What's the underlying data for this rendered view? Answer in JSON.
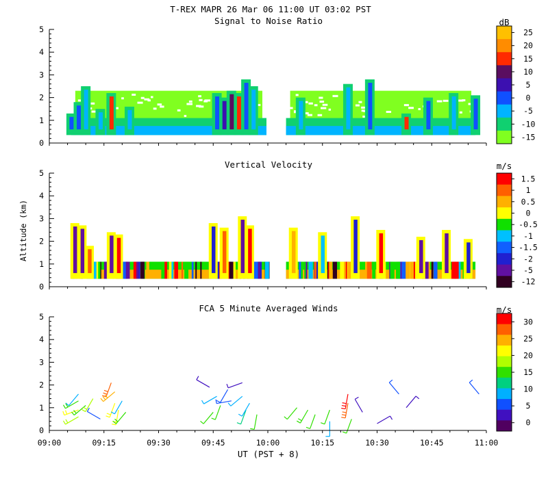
{
  "figure": {
    "title": "T-REX  MAPR 26 Mar 06  11:00 UT  03:02  PST",
    "xlabel": "UT  (PST + 8)",
    "x_ticks": [
      "09:00",
      "09:15",
      "09:30",
      "09:45",
      "10:00",
      "10:15",
      "10:30",
      "10:45",
      "11:00"
    ]
  },
  "chart_data": [
    {
      "type": "heatmap",
      "title": "Signal to Noise Ratio",
      "ylabel": "",
      "unit": "dB",
      "xlim": [
        "09:00",
        "11:00"
      ],
      "ylim": [
        0,
        5
      ],
      "y_ticks": [
        0,
        1,
        2,
        3,
        4,
        5
      ],
      "colorbar_labels": [
        "25",
        "20",
        "15",
        "10",
        "5",
        "0",
        "-5",
        "-10",
        "-15"
      ],
      "colorbar_colors": [
        "#ffc000",
        "#ff8c00",
        "#ff2a00",
        "#5a0e60",
        "#3c10b0",
        "#1050ff",
        "#00b4ff",
        "#10d070",
        "#80ff20"
      ],
      "data_gap": [
        "10:00",
        "10:05"
      ],
      "columns": [
        {
          "t": "09:06",
          "top": 1.3,
          "core": "#1050ff"
        },
        {
          "t": "09:08",
          "top": 1.8,
          "core": "#1050ff"
        },
        {
          "t": "09:10",
          "top": 2.5,
          "core": "#00b4ff"
        },
        {
          "t": "09:14",
          "top": 1.5,
          "core": "#00b4ff"
        },
        {
          "t": "09:17",
          "top": 2.2,
          "core": "#ff2a00"
        },
        {
          "t": "09:22",
          "top": 1.6,
          "core": "#00b4ff"
        },
        {
          "t": "09:46",
          "top": 2.2,
          "core": "#1050ff"
        },
        {
          "t": "09:48",
          "top": 2.0,
          "core": "#3c10b0"
        },
        {
          "t": "09:50",
          "top": 2.3,
          "core": "#5a0e60"
        },
        {
          "t": "09:52",
          "top": 2.2,
          "core": "#ff2a00"
        },
        {
          "t": "09:54",
          "top": 2.8,
          "core": "#1050ff"
        },
        {
          "t": "09:56",
          "top": 2.5,
          "core": "#00b4ff"
        },
        {
          "t": "10:09",
          "top": 2.0,
          "core": "#00b4ff"
        },
        {
          "t": "10:22",
          "top": 2.6,
          "core": "#00b4ff"
        },
        {
          "t": "10:28",
          "top": 2.8,
          "core": "#1050ff"
        },
        {
          "t": "10:38",
          "top": 1.3,
          "core": "#ff2a00"
        },
        {
          "t": "10:44",
          "top": 2.0,
          "core": "#1050ff"
        },
        {
          "t": "10:51",
          "top": 2.2,
          "core": "#00b4ff"
        },
        {
          "t": "10:57",
          "top": 2.1,
          "core": "#1050ff"
        }
      ]
    },
    {
      "type": "heatmap",
      "title": "Vertical Velocity",
      "ylabel": "Altitude (km)",
      "unit": "m/s",
      "xlim": [
        "09:00",
        "11:00"
      ],
      "ylim": [
        0,
        5
      ],
      "y_ticks": [
        0,
        1,
        2,
        3,
        4,
        5
      ],
      "colorbar_labels": [
        "1.5",
        "1",
        "0.5",
        "0",
        "-0.5",
        "-1",
        "-1.5",
        "-2",
        "-5",
        "-12"
      ],
      "colorbar_colors": [
        "#ff0000",
        "#ff6000",
        "#ffb000",
        "#ffff00",
        "#10e000",
        "#00c0ff",
        "#1060ff",
        "#2020d0",
        "#6010a0",
        "#300020"
      ],
      "data_gap": [
        "10:00",
        "10:05"
      ],
      "columns": [
        {
          "t": "09:07",
          "top": 2.8,
          "core": "#6010a0"
        },
        {
          "t": "09:09",
          "top": 2.7,
          "core": "#6010a0"
        },
        {
          "t": "09:11",
          "top": 1.8,
          "core": "#ff6000"
        },
        {
          "t": "09:17",
          "top": 2.4,
          "core": "#6010a0"
        },
        {
          "t": "09:19",
          "top": 2.3,
          "core": "#ff0000"
        },
        {
          "t": "09:45",
          "top": 2.8,
          "core": "#2020d0"
        },
        {
          "t": "09:48",
          "top": 2.6,
          "core": "#ff6000"
        },
        {
          "t": "09:53",
          "top": 3.1,
          "core": "#6010a0"
        },
        {
          "t": "09:55",
          "top": 2.7,
          "core": "#ff0000"
        },
        {
          "t": "10:07",
          "top": 2.6,
          "core": "#ffb000"
        },
        {
          "t": "10:15",
          "top": 2.4,
          "core": "#00c0ff"
        },
        {
          "t": "10:24",
          "top": 3.1,
          "core": "#2020d0"
        },
        {
          "t": "10:31",
          "top": 2.5,
          "core": "#ff0000"
        },
        {
          "t": "10:42",
          "top": 2.2,
          "core": "#6010a0"
        },
        {
          "t": "10:49",
          "top": 2.5,
          "core": "#6010a0"
        },
        {
          "t": "10:55",
          "top": 2.1,
          "core": "#2020d0"
        }
      ]
    },
    {
      "type": "scatter",
      "title": "FCA 5 Minute Averaged Winds",
      "ylabel": "",
      "unit": "m/s",
      "xlim": [
        "09:00",
        "11:00"
      ],
      "ylim": [
        0,
        5
      ],
      "y_ticks": [
        0,
        1,
        2,
        3,
        4,
        5
      ],
      "colorbar_labels": [
        "30",
        "25",
        "20",
        "15",
        "10",
        "5",
        "0"
      ],
      "colorbar_colors": [
        "#ff0000",
        "#ff6000",
        "#ffb000",
        "#ffff00",
        "#b0ff00",
        "#30e000",
        "#00d080",
        "#00b0ff",
        "#1050ff",
        "#4010c0",
        "#500060"
      ],
      "barbs": [
        {
          "t": "09:08",
          "alt": 1.6,
          "dir": 220,
          "speed": 10
        },
        {
          "t": "09:08",
          "alt": 1.3,
          "dir": 240,
          "speed": 15
        },
        {
          "t": "09:08",
          "alt": 0.9,
          "dir": 250,
          "speed": 20
        },
        {
          "t": "09:08",
          "alt": 0.6,
          "dir": 240,
          "speed": 18
        },
        {
          "t": "09:10",
          "alt": 1.1,
          "dir": 230,
          "speed": 16
        },
        {
          "t": "09:12",
          "alt": 1.4,
          "dir": 210,
          "speed": 18
        },
        {
          "t": "09:14",
          "alt": 0.5,
          "dir": 300,
          "speed": 5
        },
        {
          "t": "09:17",
          "alt": 2.1,
          "dir": 200,
          "speed": 28
        },
        {
          "t": "09:18",
          "alt": 1.7,
          "dir": 230,
          "speed": 25
        },
        {
          "t": "09:18",
          "alt": 1.2,
          "dir": 200,
          "speed": 20
        },
        {
          "t": "09:19",
          "alt": 0.9,
          "dir": 190,
          "speed": 22
        },
        {
          "t": "09:20",
          "alt": 1.3,
          "dir": 210,
          "speed": 10
        },
        {
          "t": "09:21",
          "alt": 0.8,
          "dir": 220,
          "speed": 15
        },
        {
          "t": "09:44",
          "alt": 1.9,
          "dir": 300,
          "speed": 3
        },
        {
          "t": "09:46",
          "alt": 1.5,
          "dir": 240,
          "speed": 8
        },
        {
          "t": "09:45",
          "alt": 0.8,
          "dir": 220,
          "speed": 14
        },
        {
          "t": "09:47",
          "alt": 1.1,
          "dir": 200,
          "speed": 14
        },
        {
          "t": "09:49",
          "alt": 1.8,
          "dir": 210,
          "speed": 6
        },
        {
          "t": "09:50",
          "alt": 1.3,
          "dir": 260,
          "speed": 5
        },
        {
          "t": "09:53",
          "alt": 2.1,
          "dir": 250,
          "speed": 4
        },
        {
          "t": "09:53",
          "alt": 1.5,
          "dir": 230,
          "speed": 10
        },
        {
          "t": "09:54",
          "alt": 0.9,
          "dir": 200,
          "speed": 12
        },
        {
          "t": "09:55",
          "alt": 1.2,
          "dir": 210,
          "speed": 8
        },
        {
          "t": "09:57",
          "alt": 0.7,
          "dir": 190,
          "speed": 14
        },
        {
          "t": "10:08",
          "alt": 1.0,
          "dir": 220,
          "speed": 14
        },
        {
          "t": "10:11",
          "alt": 0.9,
          "dir": 210,
          "speed": 16
        },
        {
          "t": "10:13",
          "alt": 0.7,
          "dir": 200,
          "speed": 14
        },
        {
          "t": "10:17",
          "alt": 0.4,
          "dir": 180,
          "speed": 10
        },
        {
          "t": "10:17",
          "alt": 0.9,
          "dir": 200,
          "speed": 14
        },
        {
          "t": "10:22",
          "alt": 1.6,
          "dir": 190,
          "speed": 30
        },
        {
          "t": "10:22",
          "alt": 1.2,
          "dir": 190,
          "speed": 28
        },
        {
          "t": "10:23",
          "alt": 0.5,
          "dir": 200,
          "speed": 14
        },
        {
          "t": "10:26",
          "alt": 0.8,
          "dir": 330,
          "speed": 3
        },
        {
          "t": "10:30",
          "alt": 0.3,
          "dir": 60,
          "speed": 4
        },
        {
          "t": "10:36",
          "alt": 1.6,
          "dir": 320,
          "speed": 5
        },
        {
          "t": "10:38",
          "alt": 1.0,
          "dir": 40,
          "speed": 3
        },
        {
          "t": "10:58",
          "alt": 1.6,
          "dir": 320,
          "speed": 6
        }
      ]
    }
  ]
}
